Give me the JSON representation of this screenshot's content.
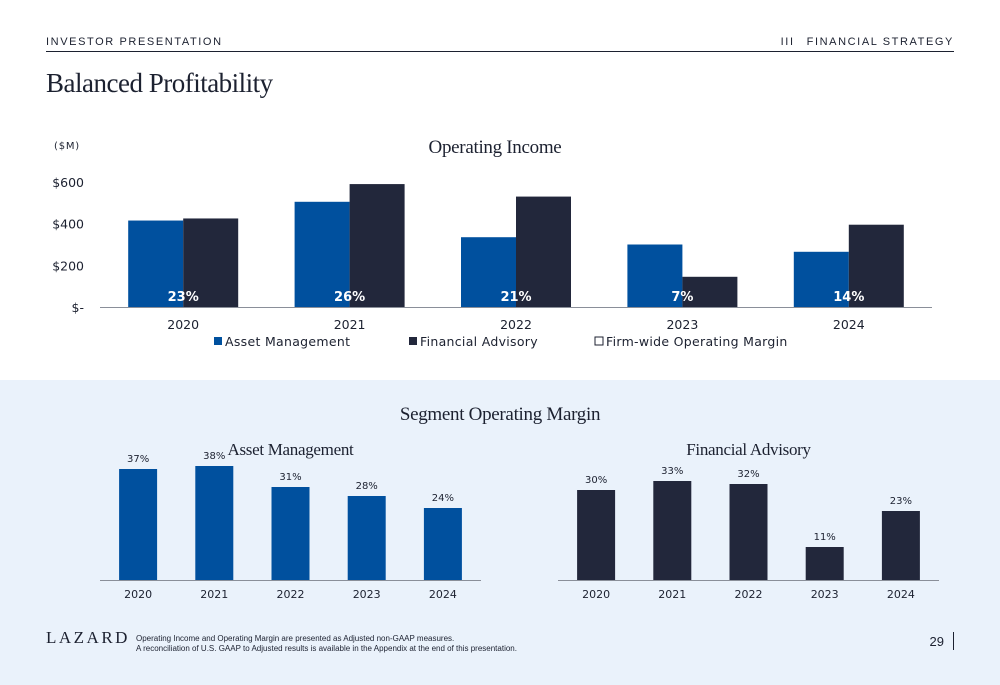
{
  "header": {
    "left": "INVESTOR PRESENTATION",
    "section_number": "III",
    "section_title": "FINANCIAL STRATEGY"
  },
  "page_title": "Balanced Profitability",
  "footer": {
    "logo": "LAZARD",
    "note_line1": "Operating Income and Operating Margin are presented as Adjusted non-GAAP measures.",
    "note_line2": "A reconciliation of U.S. GAAP to Adjusted results is available in the Appendix at the end of this presentation.",
    "page_number": "29"
  },
  "lower_section_title": "Segment Operating Margin",
  "colors": {
    "asset_management": "#00509e",
    "financial_advisory": "#22273b",
    "text": "#1c2130",
    "band": "#eaf2fb",
    "axis": "#8a8f99"
  },
  "chart_data": [
    {
      "type": "bar",
      "title": "Operating Income",
      "unit_label": "($M)",
      "categories": [
        "2020",
        "2021",
        "2022",
        "2023",
        "2024"
      ],
      "series": [
        {
          "name": "Asset Management",
          "values": [
            415,
            505,
            335,
            300,
            265
          ]
        },
        {
          "name": "Financial Advisory",
          "values": [
            425,
            590,
            530,
            145,
            395
          ]
        }
      ],
      "margin_series": {
        "name": "Firm-wide Operating Margin",
        "labels": [
          "23%",
          "26%",
          "21%",
          "7%",
          "14%"
        ]
      },
      "yticks": [
        {
          "value": 0,
          "label": "$-"
        },
        {
          "value": 200,
          "label": "$200"
        },
        {
          "value": 400,
          "label": "$400"
        },
        {
          "value": 600,
          "label": "$600"
        }
      ],
      "ylim": [
        0,
        600
      ],
      "legend_position": "bottom"
    },
    {
      "type": "bar",
      "title": "Asset Management",
      "categories": [
        "2020",
        "2021",
        "2022",
        "2023",
        "2024"
      ],
      "values": [
        37,
        38,
        31,
        28,
        24
      ],
      "labels": [
        "37%",
        "38%",
        "31%",
        "28%",
        "24%"
      ],
      "ylim": [
        0,
        40
      ]
    },
    {
      "type": "bar",
      "title": "Financial Advisory",
      "categories": [
        "2020",
        "2021",
        "2022",
        "2023",
        "2024"
      ],
      "values": [
        30,
        33,
        32,
        11,
        23
      ],
      "labels": [
        "30%",
        "33%",
        "32%",
        "11%",
        "23%"
      ],
      "ylim": [
        0,
        40
      ]
    }
  ]
}
